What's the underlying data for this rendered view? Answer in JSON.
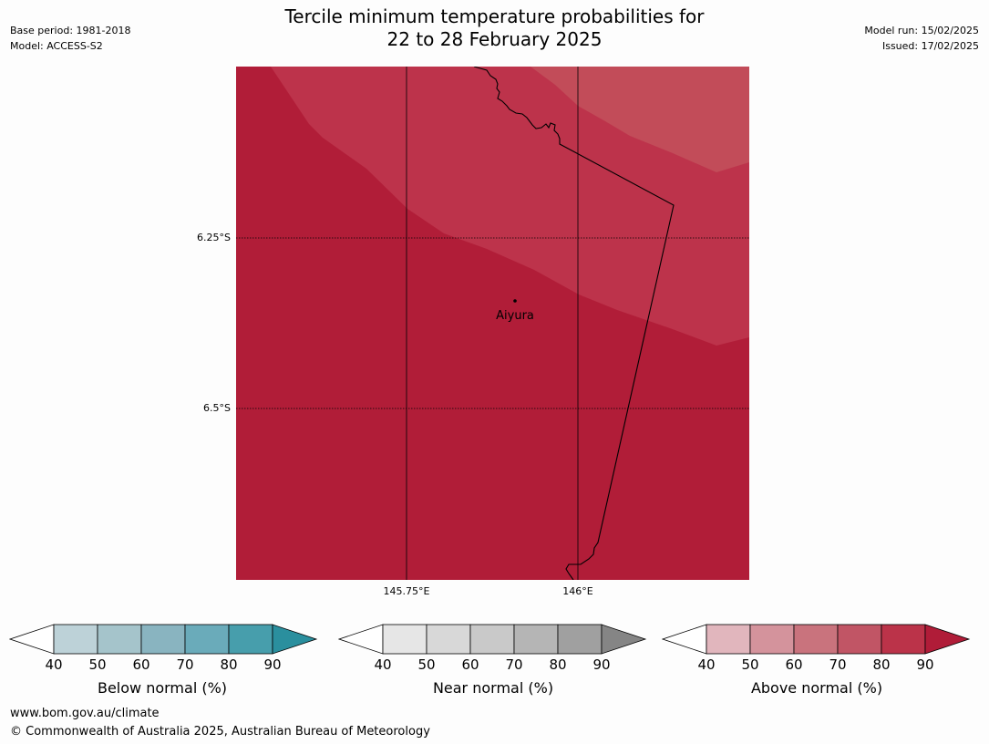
{
  "title": {
    "line1": "Tercile minimum temperature probabilities for",
    "line2": "22 to 28 February 2025"
  },
  "meta": {
    "base_period": "Base period: 1981-2018",
    "model": "Model: ACCESS-S2",
    "model_run": "Model run: 15/02/2025",
    "issued": "Issued: 17/02/2025"
  },
  "map": {
    "lat_labels": [
      "6.25°S",
      "6.5°S"
    ],
    "lon_labels": [
      "145.75°E",
      "146°E"
    ],
    "place": "Aiyura",
    "colors": {
      "base": "#b11d38",
      "band_70_80": "#bd334b",
      "band_60_70": "#c24c59",
      "coast": "#000000"
    }
  },
  "legends": [
    {
      "title": "Below normal (%)",
      "ticks": [
        "40",
        "50",
        "60",
        "70",
        "80",
        "90"
      ],
      "colors": [
        "#ffffff",
        "#bdd2d8",
        "#a5c4cb",
        "#89b4c0",
        "#6aabba",
        "#479eac",
        "#2a8f9e"
      ]
    },
    {
      "title": "Near normal (%)",
      "ticks": [
        "40",
        "50",
        "60",
        "70",
        "80",
        "90"
      ],
      "colors": [
        "#ffffff",
        "#e6e6e6",
        "#d8d8d8",
        "#c9c9c9",
        "#b5b5b5",
        "#a0a0a0",
        "#858585"
      ]
    },
    {
      "title": "Above normal (%)",
      "ticks": [
        "40",
        "50",
        "60",
        "70",
        "80",
        "90"
      ],
      "colors": [
        "#ffffff",
        "#e1b6bd",
        "#d4939c",
        "#c9737d",
        "#c15565",
        "#bb3349",
        "#b01c38"
      ]
    }
  ],
  "footer": {
    "url": "www.bom.gov.au/climate",
    "copyright": "© Commonwealth of Australia 2025, Australian Bureau of Meteorology"
  }
}
